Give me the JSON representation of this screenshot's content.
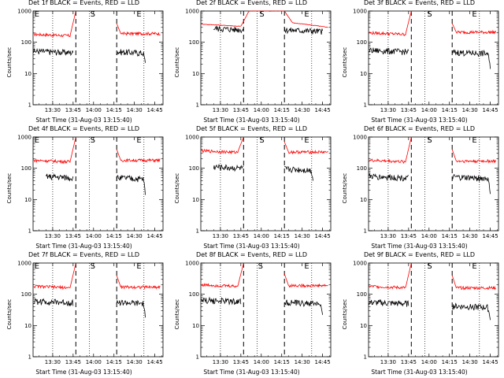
{
  "chart_data": [
    {
      "type": "line",
      "title": "Det 1f BLACK = Events, RED = LLD",
      "xlabel": "Start Time (31-Aug-03 13:15:40)",
      "ylabel": "Counts/sec",
      "ylim": [
        1,
        1000
      ],
      "yscale": "log",
      "xlim": [
        13.26,
        14.85
      ],
      "x_ticks": [
        "13:30",
        "13:45",
        "14:00",
        "14:15",
        "14:30",
        "14:45"
      ],
      "y_ticks": [
        "1",
        "10",
        "100",
        "1000"
      ],
      "markers": [
        {
          "label": "E",
          "time": "13:16"
        },
        {
          "label": "S",
          "time": "13:57"
        },
        {
          "label": "E",
          "time": "14:31"
        }
      ],
      "dashed_lines": [
        "13:47",
        "14:17"
      ],
      "dotted_lines": [
        "13:30",
        "13:57",
        "14:37"
      ],
      "series": [
        {
          "name": "LLD",
          "color": "#ff0000",
          "segments": [
            {
              "start": "13:16",
              "end": "13:47",
              "base": 180,
              "spike_to": 1000
            },
            {
              "start": "14:17",
              "end": "14:49",
              "base": 190,
              "from": 400
            }
          ]
        },
        {
          "name": "Events",
          "color": "#000000",
          "segments": [
            {
              "start": "13:16",
              "end": "13:45",
              "base": 52
            },
            {
              "start": "14:17",
              "end": "14:38",
              "base": 50,
              "drop": 22
            }
          ]
        }
      ]
    },
    {
      "type": "line",
      "title": "Det 2f BLACK = Events, RED = LLD",
      "xlabel": "Start Time (31-Aug-03 13:15:40)",
      "ylabel": "Counts/sec",
      "ylim": [
        1,
        1000
      ],
      "yscale": "log",
      "xlim": [
        13.26,
        14.85
      ],
      "x_ticks": [
        "13:30",
        "13:45",
        "14:00",
        "14:15",
        "14:30",
        "14:45"
      ],
      "y_ticks": [
        "1",
        "10",
        "100",
        "1000"
      ],
      "markers": [
        {
          "label": "S",
          "time": "13:58"
        },
        {
          "label": "E",
          "time": "14:31"
        }
      ],
      "dashed_lines": [
        "13:47",
        "14:17"
      ],
      "dotted_lines": [
        "13:30",
        "13:57",
        "14:37"
      ],
      "series": [
        {
          "name": "LLD",
          "color": "#ff0000",
          "segments": [
            {
              "start": "13:16",
              "end": "14:49",
              "base": 380,
              "plateau": 1000,
              "end_value": 300
            }
          ]
        },
        {
          "name": "Events",
          "color": "#000000",
          "segments": [
            {
              "start": "13:25",
              "end": "13:47",
              "base": 280
            },
            {
              "start": "14:17",
              "end": "14:45",
              "base": 250
            }
          ]
        }
      ]
    },
    {
      "type": "line",
      "title": "Det 3f BLACK = Events, RED = LLD",
      "xlabel": "Start Time (31-Aug-03 13:15:40)",
      "ylabel": "Counts/sec",
      "ylim": [
        1,
        1000
      ],
      "yscale": "log",
      "xlim": [
        13.26,
        14.85
      ],
      "x_ticks": [
        "13:30",
        "13:45",
        "14:00",
        "14:15",
        "14:30",
        "14:45"
      ],
      "y_ticks": [
        "1",
        "10",
        "100",
        "1000"
      ],
      "markers": [
        {
          "label": "S",
          "time": "13:58"
        },
        {
          "label": "E",
          "time": "14:31"
        }
      ],
      "dashed_lines": [
        "13:47",
        "14:17"
      ],
      "dotted_lines": [
        "13:30",
        "13:57",
        "14:37"
      ],
      "series": [
        {
          "name": "LLD",
          "color": "#ff0000",
          "segments": [
            {
              "start": "13:16",
              "end": "13:47",
              "base": 200,
              "spike_to": 1000
            },
            {
              "start": "14:17",
              "end": "14:49",
              "base": 210,
              "from": 400
            }
          ]
        },
        {
          "name": "Events",
          "color": "#000000",
          "segments": [
            {
              "start": "13:16",
              "end": "13:45",
              "base": 55
            },
            {
              "start": "14:17",
              "end": "14:45",
              "base": 48,
              "drop": 14
            }
          ]
        }
      ]
    },
    {
      "type": "line",
      "title": "Det 4f BLACK = Events, RED = LLD",
      "xlabel": "Start Time (31-Aug-03 13:15:40)",
      "ylabel": "Counts/sec",
      "ylim": [
        1,
        1000
      ],
      "yscale": "log",
      "xlim": [
        13.26,
        14.85
      ],
      "x_ticks": [
        "13:30",
        "13:45",
        "14:00",
        "14:15",
        "14:30",
        "14:45"
      ],
      "y_ticks": [
        "1",
        "10",
        "100",
        "1000"
      ],
      "markers": [
        {
          "label": "E",
          "time": "13:16"
        },
        {
          "label": "S",
          "time": "13:57"
        },
        {
          "label": "E",
          "time": "14:31"
        }
      ],
      "dashed_lines": [
        "13:47",
        "14:17"
      ],
      "dotted_lines": [
        "13:30",
        "13:57",
        "14:37"
      ],
      "series": [
        {
          "name": "LLD",
          "color": "#ff0000",
          "segments": [
            {
              "start": "13:16",
              "end": "13:47",
              "base": 180,
              "spike_to": 1000
            },
            {
              "start": "14:17",
              "end": "14:49",
              "base": 180,
              "from": 400
            }
          ]
        },
        {
          "name": "Events",
          "color": "#000000",
          "segments": [
            {
              "start": "13:25",
              "end": "13:45",
              "base": 55
            },
            {
              "start": "14:17",
              "end": "14:38",
              "base": 50,
              "drop": 14
            }
          ]
        }
      ]
    },
    {
      "type": "line",
      "title": "Det 5f BLACK = Events, RED = LLD",
      "xlabel": "Start Time (31-Aug-03 13:15:40)",
      "ylabel": "Counts/sec",
      "ylim": [
        1,
        1000
      ],
      "yscale": "log",
      "xlim": [
        13.26,
        14.85
      ],
      "x_ticks": [
        "13:30",
        "13:45",
        "14:00",
        "14:15",
        "14:30",
        "14:45"
      ],
      "y_ticks": [
        "1",
        "10",
        "100",
        "1000"
      ],
      "markers": [
        {
          "label": "S",
          "time": "13:58"
        },
        {
          "label": "E",
          "time": "14:31"
        }
      ],
      "dashed_lines": [
        "13:47",
        "14:17"
      ],
      "dotted_lines": [
        "13:30",
        "13:57",
        "14:37"
      ],
      "series": [
        {
          "name": "LLD",
          "color": "#ff0000",
          "segments": [
            {
              "start": "13:16",
              "end": "13:47",
              "base": 360,
              "spike_to": 1000
            },
            {
              "start": "14:17",
              "end": "14:49",
              "base": 330,
              "from": 700
            }
          ]
        },
        {
          "name": "Events",
          "color": "#000000",
          "segments": [
            {
              "start": "13:25",
              "end": "13:47",
              "base": 110
            },
            {
              "start": "14:17",
              "end": "14:38",
              "base": 95,
              "drop": 40
            }
          ]
        }
      ]
    },
    {
      "type": "line",
      "title": "Det 6f BLACK = Events, RED = LLD",
      "xlabel": "Start Time (31-Aug-03 13:15:40)",
      "ylabel": "Counts/sec",
      "ylim": [
        1,
        1000
      ],
      "yscale": "log",
      "xlim": [
        13.26,
        14.85
      ],
      "x_ticks": [
        "13:30",
        "13:45",
        "14:00",
        "14:15",
        "14:30",
        "14:45"
      ],
      "y_ticks": [
        "1",
        "10",
        "100",
        "1000"
      ],
      "markers": [
        {
          "label": "S",
          "time": "13:58"
        },
        {
          "label": "E",
          "time": "14:31"
        }
      ],
      "dashed_lines": [
        "13:47",
        "14:17"
      ],
      "dotted_lines": [
        "13:30",
        "13:57",
        "14:37"
      ],
      "series": [
        {
          "name": "LLD",
          "color": "#ff0000",
          "segments": [
            {
              "start": "13:16",
              "end": "13:47",
              "base": 180,
              "spike_to": 1000
            },
            {
              "start": "14:17",
              "end": "14:49",
              "base": 170,
              "from": 400
            }
          ]
        },
        {
          "name": "Events",
          "color": "#000000",
          "segments": [
            {
              "start": "13:16",
              "end": "13:45",
              "base": 55
            },
            {
              "start": "14:17",
              "end": "14:45",
              "base": 52,
              "drop": 15
            }
          ]
        }
      ]
    },
    {
      "type": "line",
      "title": "Det 7f BLACK = Events, RED = LLD",
      "xlabel": "Start Time (31-Aug-03 13:15:40)",
      "ylabel": "Counts/sec",
      "ylim": [
        1,
        1000
      ],
      "yscale": "log",
      "xlim": [
        13.26,
        14.85
      ],
      "x_ticks": [
        "13:30",
        "13:45",
        "14:00",
        "14:15",
        "14:30",
        "14:45"
      ],
      "y_ticks": [
        "1",
        "10",
        "100",
        "1000"
      ],
      "markers": [
        {
          "label": "E",
          "time": "13:16"
        },
        {
          "label": "S",
          "time": "13:57"
        },
        {
          "label": "E",
          "time": "14:31"
        }
      ],
      "dashed_lines": [
        "13:47",
        "14:17"
      ],
      "dotted_lines": [
        "13:30",
        "13:57",
        "14:37"
      ],
      "series": [
        {
          "name": "LLD",
          "color": "#ff0000",
          "segments": [
            {
              "start": "13:16",
              "end": "13:47",
              "base": 180,
              "spike_to": 1000
            },
            {
              "start": "14:17",
              "end": "14:49",
              "base": 170,
              "from": 400
            }
          ]
        },
        {
          "name": "Events",
          "color": "#000000",
          "segments": [
            {
              "start": "13:16",
              "end": "13:45",
              "base": 60
            },
            {
              "start": "14:17",
              "end": "14:38",
              "base": 55,
              "drop": 18
            }
          ]
        }
      ]
    },
    {
      "type": "line",
      "title": "Det 8f BLACK = Events, RED = LLD",
      "xlabel": "Start Time (31-Aug-03 13:15:40)",
      "ylabel": "Counts/sec",
      "ylim": [
        1,
        1000
      ],
      "yscale": "log",
      "xlim": [
        13.26,
        14.85
      ],
      "x_ticks": [
        "13:30",
        "13:45",
        "14:00",
        "14:15",
        "14:30",
        "14:45"
      ],
      "y_ticks": [
        "1",
        "10",
        "100",
        "1000"
      ],
      "markers": [
        {
          "label": "S",
          "time": "13:57"
        },
        {
          "label": "E",
          "time": "14:31"
        }
      ],
      "dashed_lines": [
        "13:47",
        "14:17"
      ],
      "dotted_lines": [
        "13:30",
        "13:57",
        "14:37"
      ],
      "series": [
        {
          "name": "LLD",
          "color": "#ff0000",
          "segments": [
            {
              "start": "13:16",
              "end": "13:47",
              "base": 200,
              "spike_to": 1000
            },
            {
              "start": "14:17",
              "end": "14:49",
              "base": 190,
              "from": 450
            }
          ]
        },
        {
          "name": "Events",
          "color": "#000000",
          "segments": [
            {
              "start": "13:16",
              "end": "13:45",
              "base": 65
            },
            {
              "start": "14:17",
              "end": "14:45",
              "base": 55,
              "drop": 22
            }
          ]
        }
      ]
    },
    {
      "type": "line",
      "title": "Det 9f BLACK = Events, RED = LLD",
      "xlabel": "Start Time (31-Aug-03 13:15:40)",
      "ylabel": "Counts/sec",
      "ylim": [
        1,
        1000
      ],
      "yscale": "log",
      "xlim": [
        13.26,
        14.85
      ],
      "x_ticks": [
        "13:30",
        "13:45",
        "14:00",
        "14:15",
        "14:30",
        "14:45"
      ],
      "y_ticks": [
        "1",
        "10",
        "100",
        "1000"
      ],
      "markers": [
        {
          "label": "S",
          "time": "13:58"
        },
        {
          "label": "E",
          "time": "14:31"
        }
      ],
      "dashed_lines": [
        "13:47",
        "14:17"
      ],
      "dotted_lines": [
        "13:30",
        "13:57",
        "14:37"
      ],
      "series": [
        {
          "name": "LLD",
          "color": "#ff0000",
          "segments": [
            {
              "start": "13:16",
              "end": "13:47",
              "base": 180,
              "spike_to": 1000
            },
            {
              "start": "14:17",
              "end": "14:49",
              "base": 160,
              "from": 400
            }
          ]
        },
        {
          "name": "Events",
          "color": "#000000",
          "segments": [
            {
              "start": "13:16",
              "end": "13:45",
              "base": 55
            },
            {
              "start": "14:17",
              "end": "14:45",
              "base": 42,
              "drop": 15
            }
          ]
        }
      ]
    }
  ]
}
